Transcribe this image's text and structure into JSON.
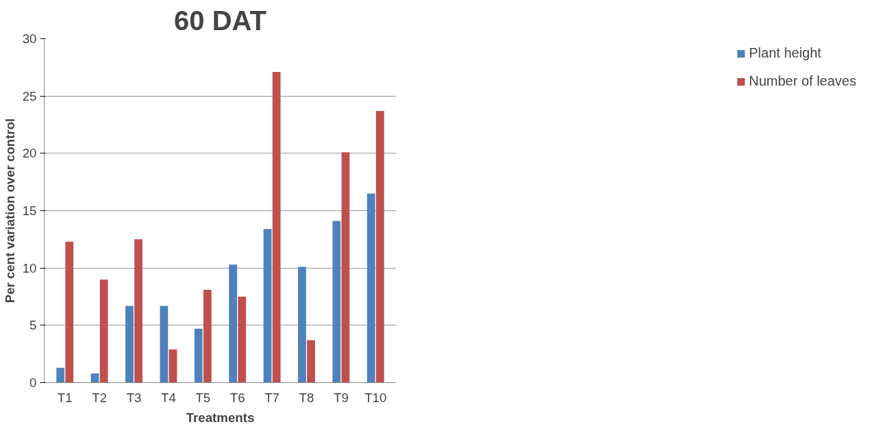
{
  "chart_data": {
    "type": "bar",
    "title": "60 DAT",
    "xlabel": "Treatments",
    "ylabel": "Per cent variation over control",
    "categories": [
      "T1",
      "T2",
      "T3",
      "T4",
      "T5",
      "T6",
      "T7",
      "T8",
      "T9",
      "T10"
    ],
    "series": [
      {
        "name": "Plant height",
        "color": "#4f81bd",
        "values": [
          1.3,
          0.8,
          6.7,
          6.7,
          4.7,
          10.3,
          13.4,
          10.1,
          14.1,
          16.5
        ]
      },
      {
        "name": "Number of leaves",
        "color": "#c0504d",
        "values": [
          12.3,
          9.0,
          12.5,
          2.9,
          8.1,
          7.5,
          27.1,
          3.7,
          20.1,
          23.7
        ]
      }
    ],
    "ylim": [
      0,
      30
    ],
    "yticks": [
      0,
      5,
      10,
      15,
      20,
      25,
      30
    ],
    "grid": "y",
    "legend": "right"
  }
}
